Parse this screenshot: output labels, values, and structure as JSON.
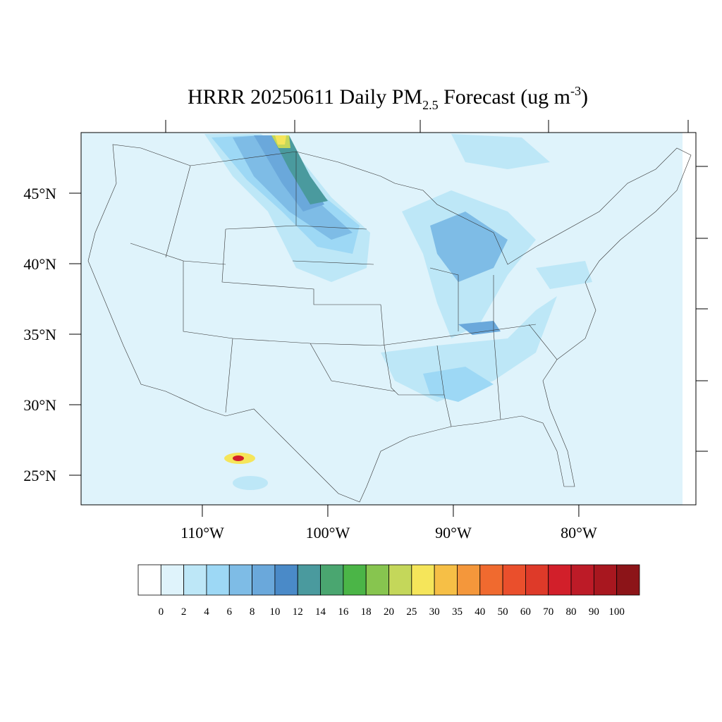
{
  "title": {
    "main": "HRRR 20250611 Daily PM",
    "sub": "2.5",
    "mid": " Forecast (ug m",
    "sup": "-3",
    "end": ")"
  },
  "map": {
    "lat_range": [
      22.9,
      49.3
    ],
    "lon_range": [
      -119.66,
      -70.67
    ],
    "lat_ticks": [
      {
        "value": 45,
        "label": "45°N"
      },
      {
        "value": 40,
        "label": "40°N"
      },
      {
        "value": 35,
        "label": "35°N"
      },
      {
        "value": 30,
        "label": "30°N"
      },
      {
        "value": 25,
        "label": "25°N"
      }
    ],
    "lon_ticks": [
      {
        "value": -110,
        "label": "110°W"
      },
      {
        "value": -100,
        "label": "100°W"
      },
      {
        "value": -90,
        "label": "90°W"
      },
      {
        "value": -80,
        "label": "80°W"
      }
    ]
  },
  "colorbar": {
    "levels": [
      0,
      2,
      4,
      6,
      8,
      10,
      12,
      14,
      16,
      18,
      20,
      25,
      30,
      35,
      40,
      50,
      60,
      70,
      80,
      90,
      100
    ],
    "colors": [
      "#ffffff",
      "#dff3fb",
      "#bde7f7",
      "#9dd8f5",
      "#7ebce6",
      "#6aa8db",
      "#4a8ac8",
      "#4a9a9e",
      "#4aa670",
      "#4bb547",
      "#87c54f",
      "#c4d75a",
      "#f5e55a",
      "#f6bf46",
      "#f4973b",
      "#f06a2f",
      "#ea4f2c",
      "#de3a29",
      "#d21f2a",
      "#bd1b27",
      "#a8171f",
      "#8c1418"
    ]
  }
}
